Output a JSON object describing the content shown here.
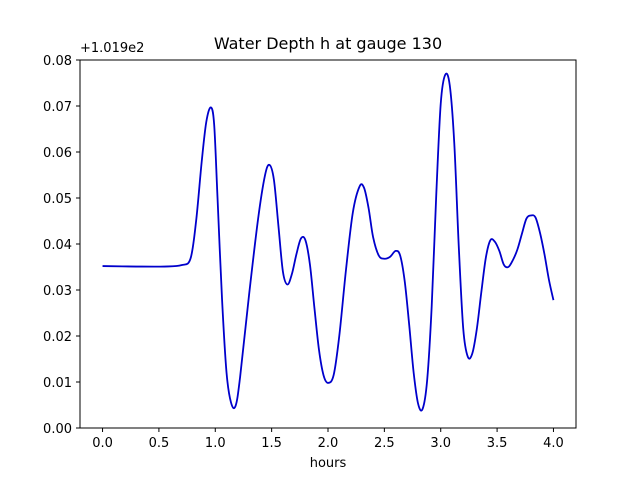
{
  "chart_data": {
    "type": "line",
    "title": "Water Depth h at gauge 130",
    "xlabel": "hours",
    "ylabel": "",
    "y_offset_label": "+1.019e2",
    "xlim": [
      -0.2,
      4.2
    ],
    "ylim": [
      0.0,
      0.08
    ],
    "x_ticks": [
      0.0,
      0.5,
      1.0,
      1.5,
      2.0,
      2.5,
      3.0,
      3.5,
      4.0
    ],
    "x_tick_labels": [
      "0.0",
      "0.5",
      "1.0",
      "1.5",
      "2.0",
      "2.5",
      "3.0",
      "3.5",
      "4.0"
    ],
    "y_ticks": [
      0.0,
      0.01,
      0.02,
      0.03,
      0.04,
      0.05,
      0.06,
      0.07,
      0.08
    ],
    "y_tick_labels": [
      "0.00",
      "0.01",
      "0.02",
      "0.03",
      "0.04",
      "0.05",
      "0.06",
      "0.07",
      "0.08"
    ],
    "grid": false,
    "series": [
      {
        "color": "#0000cc",
        "x": [
          0.0,
          0.3,
          0.55,
          0.7,
          0.78,
          0.83,
          0.88,
          0.92,
          0.96,
          0.99,
          1.02,
          1.06,
          1.1,
          1.14,
          1.18,
          1.22,
          1.3,
          1.38,
          1.44,
          1.48,
          1.52,
          1.56,
          1.6,
          1.64,
          1.68,
          1.72,
          1.76,
          1.8,
          1.84,
          1.88,
          1.92,
          1.96,
          2.0,
          2.05,
          2.1,
          2.16,
          2.22,
          2.28,
          2.32,
          2.36,
          2.4,
          2.45,
          2.5,
          2.55,
          2.6,
          2.64,
          2.68,
          2.72,
          2.76,
          2.8,
          2.84,
          2.88,
          2.92,
          2.96,
          3.0,
          3.04,
          3.08,
          3.12,
          3.16,
          3.2,
          3.24,
          3.28,
          3.32,
          3.36,
          3.4,
          3.44,
          3.48,
          3.52,
          3.56,
          3.6,
          3.64,
          3.68,
          3.72,
          3.76,
          3.8,
          3.84,
          3.88,
          3.92,
          3.96,
          4.0
        ],
        "y": [
          0.0352,
          0.0351,
          0.0351,
          0.0354,
          0.0368,
          0.045,
          0.058,
          0.0665,
          0.0697,
          0.066,
          0.05,
          0.028,
          0.012,
          0.0055,
          0.0048,
          0.011,
          0.029,
          0.0455,
          0.0548,
          0.0572,
          0.054,
          0.044,
          0.034,
          0.0312,
          0.0335,
          0.0378,
          0.0412,
          0.0408,
          0.0355,
          0.026,
          0.017,
          0.0115,
          0.0098,
          0.0115,
          0.02,
          0.0345,
          0.0468,
          0.0525,
          0.0522,
          0.0478,
          0.0415,
          0.0375,
          0.0368,
          0.0372,
          0.0385,
          0.0375,
          0.032,
          0.0225,
          0.012,
          0.0052,
          0.0042,
          0.0105,
          0.0265,
          0.0505,
          0.0705,
          0.0768,
          0.0745,
          0.062,
          0.0395,
          0.0215,
          0.0155,
          0.0162,
          0.0215,
          0.0295,
          0.037,
          0.0408,
          0.0405,
          0.0385,
          0.0355,
          0.035,
          0.0365,
          0.0388,
          0.0422,
          0.0455,
          0.0462,
          0.0458,
          0.0425,
          0.0378,
          0.0322,
          0.0278
        ]
      }
    ]
  }
}
